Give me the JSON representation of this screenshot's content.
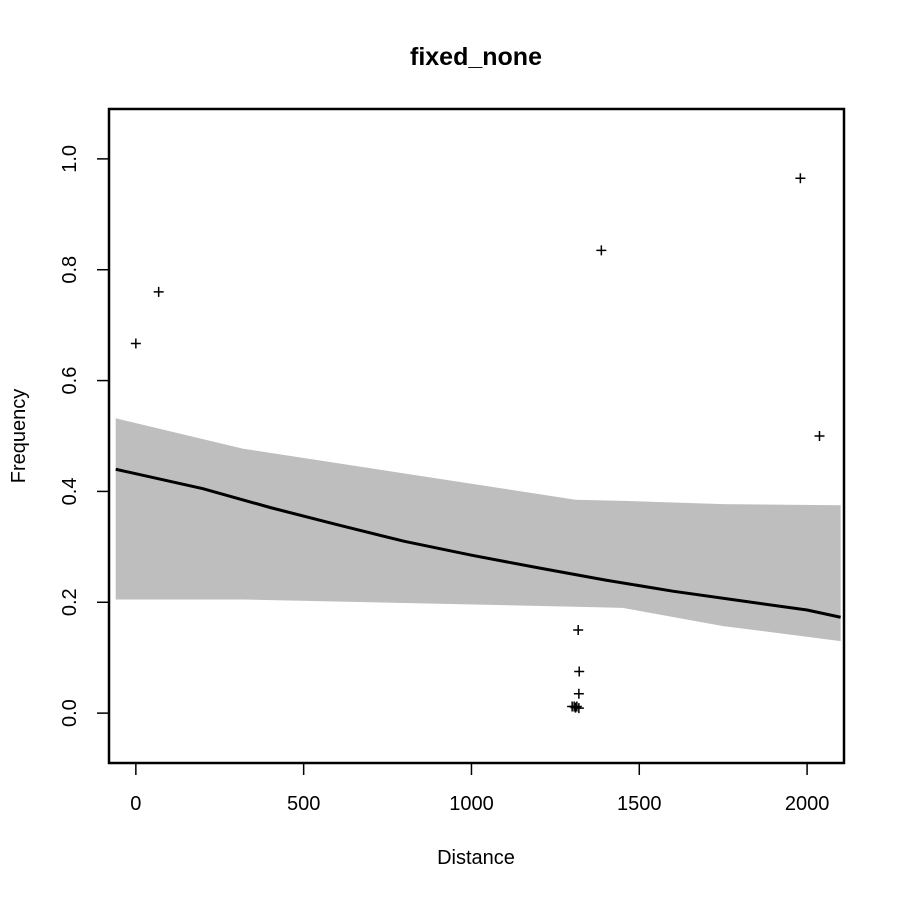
{
  "chart_data": {
    "type": "scatter",
    "title": "fixed_none",
    "xlabel": "Distance",
    "ylabel": "Frequency",
    "xlim": [
      -80,
      2110
    ],
    "ylim": [
      -0.09,
      1.09
    ],
    "x_ticks": [
      0,
      500,
      1000,
      1500,
      2000
    ],
    "x_tick_labels": [
      "0",
      "500",
      "1000",
      "1500",
      "2000"
    ],
    "y_ticks": [
      0.0,
      0.2,
      0.4,
      0.6,
      0.8,
      1.0
    ],
    "y_tick_labels": [
      "0.0",
      "0.2",
      "0.4",
      "0.6",
      "0.8",
      "1.0"
    ],
    "grid": false,
    "points": [
      {
        "x": 0,
        "y": 0.667
      },
      {
        "x": 68,
        "y": 0.76
      },
      {
        "x": 1300,
        "y": 0.012
      },
      {
        "x": 1306,
        "y": 0.012
      },
      {
        "x": 1310,
        "y": 0.01
      },
      {
        "x": 1314,
        "y": 0.012
      },
      {
        "x": 1320,
        "y": 0.009
      },
      {
        "x": 1318,
        "y": 0.15
      },
      {
        "x": 1321,
        "y": 0.075
      },
      {
        "x": 1320,
        "y": 0.035
      },
      {
        "x": 1387,
        "y": 0.835
      },
      {
        "x": 1980,
        "y": 0.965
      },
      {
        "x": 2037,
        "y": 0.5
      }
    ],
    "fit_line": [
      {
        "x": -60,
        "y": 0.44
      },
      {
        "x": 200,
        "y": 0.405
      },
      {
        "x": 400,
        "y": 0.371
      },
      {
        "x": 600,
        "y": 0.34
      },
      {
        "x": 800,
        "y": 0.31
      },
      {
        "x": 1000,
        "y": 0.285
      },
      {
        "x": 1200,
        "y": 0.262
      },
      {
        "x": 1400,
        "y": 0.24
      },
      {
        "x": 1600,
        "y": 0.22
      },
      {
        "x": 1800,
        "y": 0.203
      },
      {
        "x": 2000,
        "y": 0.186
      },
      {
        "x": 2100,
        "y": 0.173
      }
    ],
    "ci_band": [
      {
        "x": -60,
        "upper": 0.532,
        "lower": 0.205
      },
      {
        "x": 320,
        "upper": 0.477,
        "lower": 0.205
      },
      {
        "x": 1310,
        "upper": 0.385,
        "lower": 0.192
      },
      {
        "x": 1450,
        "upper": 0.383,
        "lower": 0.19
      },
      {
        "x": 1750,
        "upper": 0.377,
        "lower": 0.157
      },
      {
        "x": 2100,
        "upper": 0.375,
        "lower": 0.13
      }
    ],
    "colors": {
      "points": "#000000",
      "fit_line": "#000000",
      "ci_band": "#bebebe"
    }
  }
}
